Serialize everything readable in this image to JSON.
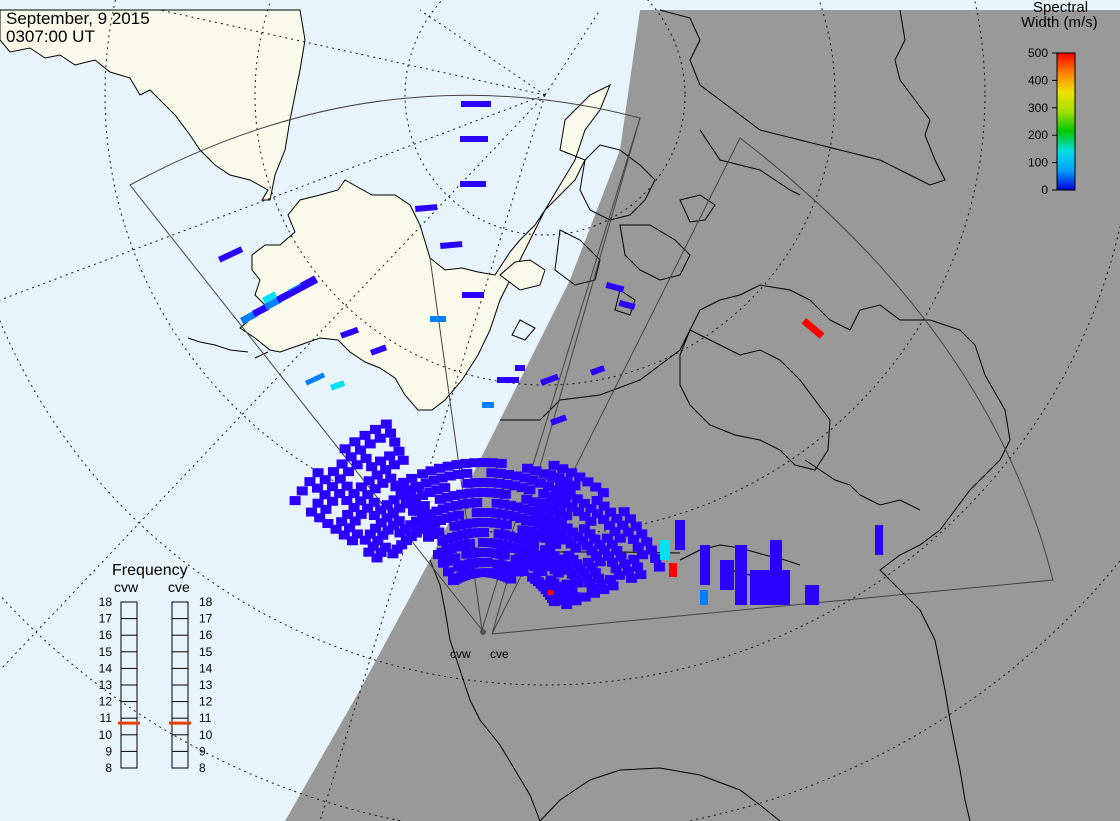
{
  "header": {
    "date": "September, 9 2015",
    "time": "0307:00 UT"
  },
  "colorbar": {
    "title_line1": "Spectral",
    "title_line2": "Width (m/s)",
    "ticks": [
      "500",
      "400",
      "300",
      "200",
      "100",
      "0"
    ],
    "min_value": 0,
    "max_value": 500,
    "colors": [
      "#0000e0",
      "#00a0ff",
      "#00e0e0",
      "#00c800",
      "#a0e000",
      "#f0e000",
      "#ff8000",
      "#ff0000"
    ]
  },
  "frequency_panel": {
    "title": "Frequency",
    "ticks": [
      "18",
      "17",
      "16",
      "15",
      "14",
      "13",
      "12",
      "11",
      "10",
      "9",
      "8"
    ],
    "min_mhz": 8,
    "max_mhz": 18,
    "indicator_color": "#e04000",
    "radars": [
      {
        "code": "cvw",
        "frequency_mhz": 10.7
      },
      {
        "code": "cve",
        "frequency_mhz": 10.7
      }
    ]
  },
  "radar_sites": [
    {
      "code": "cvw"
    },
    {
      "code": "cve"
    }
  ],
  "map_colors": {
    "ocean": "#e8f4fc",
    "land": "#fafaea",
    "night": "#999999",
    "coast": "#000000",
    "grid": "#000000",
    "fov": "#444444",
    "echo_low": "#2a00ff",
    "echo_mid": "#0080ff",
    "echo_cyan": "#00e0f0",
    "echo_high": "#ff0000"
  }
}
